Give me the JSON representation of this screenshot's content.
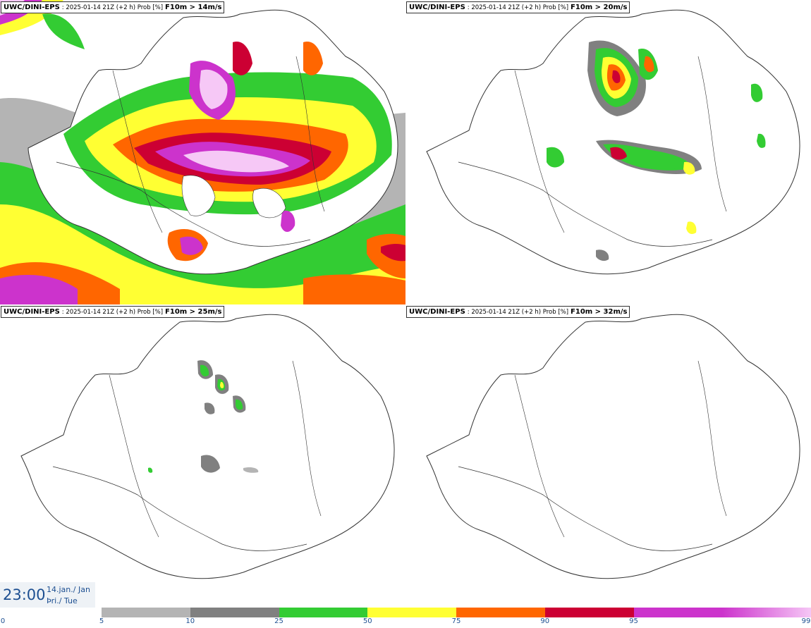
{
  "panels": [
    {
      "model": "UWC/DINI-EPS",
      "meta": ": 2025-01-14 21Z (+2 h) Prob [%]",
      "param": "F10m > 14m/s"
    },
    {
      "model": "UWC/DINI-EPS",
      "meta": ": 2025-01-14 21Z (+2 h) Prob [%]",
      "param": "F10m > 20m/s"
    },
    {
      "model": "UWC/DINI-EPS",
      "meta": ": 2025-01-14 21Z (+2 h) Prob [%]",
      "param": "F10m > 25m/s"
    },
    {
      "model": "UWC/DINI-EPS",
      "meta": ": 2025-01-14 21Z (+2 h) Prob [%]",
      "param": "F10m > 32m/s"
    }
  ],
  "time": {
    "clock": "23:00",
    "date_line": "14.jan./ Jan",
    "day_line": "Þri./ Tue"
  },
  "legend": {
    "ticks": [
      "0",
      "5",
      "10",
      "25",
      "50",
      "75",
      "90",
      "95",
      "99"
    ],
    "colors": [
      "#b4b4b4",
      "#808080",
      "#33cc33",
      "#ffff33",
      "#ff6600",
      "#cc0033",
      "#cc33cc",
      "#f6c8f6"
    ]
  }
}
